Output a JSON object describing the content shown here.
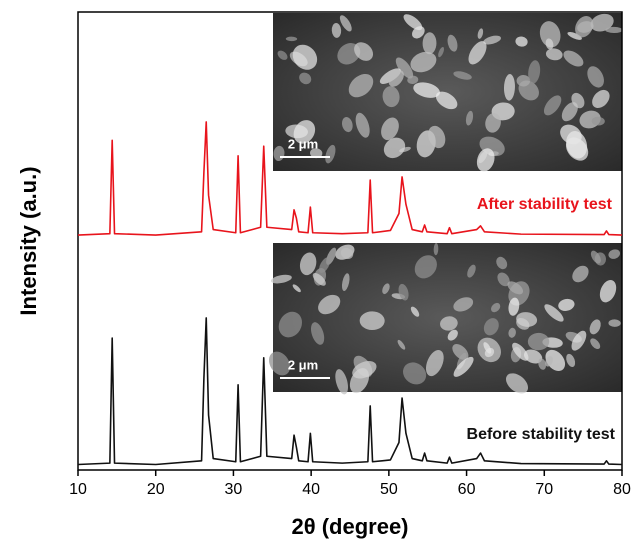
{
  "chart_data": {
    "type": "line",
    "xlabel": "2θ (degree)",
    "ylabel": "Intensity (a.u.)",
    "xlim": [
      10,
      80
    ],
    "xticks": [
      10,
      20,
      30,
      40,
      50,
      60,
      70,
      80
    ],
    "ylim": [
      0,
      100
    ],
    "x": [
      10,
      14.1,
      14.4,
      14.7,
      20,
      25.9,
      26.2,
      26.5,
      26.8,
      27.4,
      30.3,
      30.6,
      30.9,
      33.5,
      33.9,
      34.3,
      37.5,
      37.8,
      38.1,
      38.4,
      39.6,
      39.9,
      40.2,
      44,
      47.3,
      47.6,
      47.9,
      50.2,
      51.3,
      51.7,
      52.2,
      53,
      54.3,
      54.6,
      54.9,
      57.5,
      57.8,
      58.1,
      61.3,
      61.8,
      62.3,
      67,
      77.7,
      78,
      78.3,
      80
    ],
    "series": [
      {
        "name": "After stability test",
        "color": "#e8141c",
        "values": [
          51.3,
          51.6,
          72,
          51.6,
          51.3,
          52,
          65,
          76,
          60,
          52.5,
          51.8,
          68.6,
          51.8,
          53,
          70.7,
          53,
          52.5,
          56.8,
          55,
          52,
          51.8,
          57.4,
          51.8,
          51.6,
          51.8,
          63.3,
          51.8,
          52.3,
          56,
          64,
          58,
          52.5,
          52,
          53.5,
          52,
          51.6,
          52.9,
          51.6,
          52.5,
          53.3,
          52,
          51.5,
          51.4,
          52.2,
          51.4,
          51.3
        ]
      },
      {
        "name": "Before stability test",
        "color": "#111111",
        "values": [
          1.2,
          1.5,
          28.8,
          1.5,
          1.2,
          2,
          20,
          33.2,
          12,
          2.5,
          1.8,
          18.6,
          1.8,
          3,
          24.5,
          3,
          2.5,
          7.6,
          5,
          2,
          1.8,
          8,
          1.8,
          1.5,
          1.8,
          14,
          1.8,
          2.2,
          6,
          15.7,
          8,
          2.5,
          2,
          3.7,
          2,
          1.5,
          2.8,
          1.5,
          2.5,
          3.7,
          2,
          1.4,
          1.3,
          2,
          1.3,
          1.2
        ]
      }
    ],
    "inset_scale_bars": [
      "2 μm",
      "2 μm"
    ]
  }
}
